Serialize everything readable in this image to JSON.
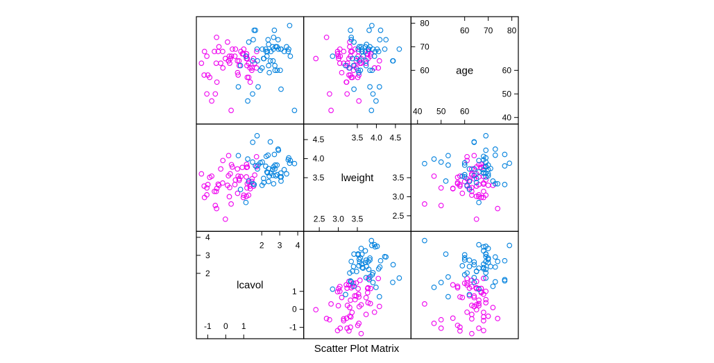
{
  "chart_data": {
    "type": "scatter",
    "title": "",
    "xlabel": "Scatter Plot Matrix",
    "grid": false,
    "legend": "none",
    "colors": {
      "group_1": "#ee00ee",
      "group_2": "#0080dd"
    },
    "variables": [
      {
        "name": "lcavol",
        "range": [
          -1.4,
          4.1
        ],
        "tick_low": [
          -1,
          0,
          1
        ],
        "tick_high": [
          2,
          3,
          4
        ]
      },
      {
        "name": "lweight",
        "range": [
          2.2,
          4.8
        ],
        "tick_low": [
          2.5,
          3.0,
          3.5
        ],
        "tick_high": [
          3.5,
          4.0,
          4.5
        ]
      },
      {
        "name": "age",
        "range": [
          39,
          81
        ],
        "tick_low": [
          40,
          50,
          60
        ],
        "tick_high": [
          60,
          70,
          80
        ]
      }
    ],
    "tick_labels": {
      "lcavol": {
        "low": [
          "-1",
          "0",
          "1"
        ],
        "high": [
          "2",
          "3",
          "4"
        ]
      },
      "lweight": {
        "low": [
          "2.5",
          "3.0",
          "3.5"
        ],
        "high": [
          "3.5",
          "4.0",
          "4.5"
        ]
      },
      "age": {
        "low": [
          "40",
          "50",
          "60"
        ],
        "high": [
          "60",
          "70",
          "80"
        ]
      }
    },
    "series": [
      {
        "color": "#ee00ee",
        "points": [
          [
            -0.58,
            2.77,
            50
          ],
          [
            -0.99,
            3.32,
            58
          ],
          [
            -0.51,
            2.69,
            74
          ],
          [
            -1.2,
            3.28,
            58
          ],
          [
            0.75,
            3.43,
            62
          ],
          [
            -1.05,
            3.23,
            50
          ],
          [
            0.74,
            3.47,
            64
          ],
          [
            0.69,
            3.54,
            58
          ],
          [
            -0.78,
            3.54,
            47
          ],
          [
            0.22,
            3.24,
            63
          ],
          [
            0.25,
            3.6,
            65
          ],
          [
            -1.35,
            3.6,
            63
          ],
          [
            1.61,
            3.57,
            63
          ],
          [
            1.27,
            3.04,
            63
          ],
          [
            1.45,
            3.4,
            60
          ],
          [
            0.16,
            4.08,
            64
          ],
          [
            0.84,
            3.53,
            68
          ],
          [
            -0.63,
            3.14,
            68
          ],
          [
            0.51,
            3.32,
            66
          ],
          [
            1.2,
            3.78,
            65
          ],
          [
            1.16,
            3.85,
            67
          ],
          [
            0.37,
            3.78,
            69
          ],
          [
            0.2,
            3.0,
            66
          ],
          [
            1.16,
            3.77,
            67
          ],
          [
            -0.28,
            3.73,
            63
          ],
          [
            1.15,
            3.52,
            66
          ],
          [
            -0.42,
            3.33,
            68
          ],
          [
            1.71,
            4.05,
            61
          ],
          [
            1.2,
            3.34,
            57
          ],
          [
            1.46,
            3.47,
            61
          ],
          [
            1.72,
            3.79,
            68
          ],
          [
            -0.16,
            3.95,
            61
          ],
          [
            0.65,
            3.73,
            64
          ],
          [
            -0.49,
            3.22,
            55
          ],
          [
            0.54,
            3.44,
            69
          ],
          [
            0.1,
            3.3,
            72
          ],
          [
            1.15,
            3.01,
            65
          ],
          [
            0.32,
            3.84,
            66
          ],
          [
            -0.89,
            3.51,
            57
          ],
          [
            0.98,
            2.98,
            67
          ],
          [
            1.18,
            3.23,
            62
          ],
          [
            -1.18,
            2.98,
            68
          ],
          [
            0.3,
            2.81,
            43
          ],
          [
            -0.17,
            3.36,
            68
          ],
          [
            1.0,
            3.04,
            69
          ],
          [
            -0.38,
            3.3,
            70
          ],
          [
            1.55,
            3.28,
            65
          ],
          [
            1.35,
            3.28,
            61
          ],
          [
            -0.53,
            3.14,
            63
          ],
          [
            -1.05,
            3.05,
            66
          ],
          [
            -0.02,
            2.41,
            65
          ],
          [
            0.15,
            3.55,
            64
          ],
          [
            1.36,
            3.21,
            55
          ],
          [
            0.66,
            3.09,
            59
          ],
          [
            1.28,
            3.37,
            57
          ],
          [
            0.92,
            3.77,
            67
          ]
        ]
      },
      {
        "color": "#0080dd",
        "points": [
          [
            2.29,
            3.65,
            66
          ],
          [
            1.8,
            3.83,
            53
          ],
          [
            2.03,
            3.91,
            69
          ],
          [
            2.65,
            3.78,
            69
          ],
          [
            3.47,
            3.97,
            68
          ],
          [
            2.73,
            3.73,
            62
          ],
          [
            2.02,
            3.3,
            61
          ],
          [
            3.82,
            3.87,
            43
          ],
          [
            2.38,
            3.4,
            62
          ],
          [
            1.53,
            3.34,
            73
          ],
          [
            2.7,
            4.11,
            77
          ],
          [
            2.12,
            3.37,
            65
          ],
          [
            2.66,
            3.34,
            74
          ],
          [
            2.86,
            3.58,
            60
          ],
          [
            2.42,
            3.54,
            59
          ],
          [
            1.5,
            4.43,
            64
          ],
          [
            3.38,
            3.6,
            70
          ],
          [
            3.06,
            3.62,
            69
          ],
          [
            3.08,
            3.52,
            69
          ],
          [
            1.74,
            4.6,
            69
          ],
          [
            2.32,
            3.63,
            68
          ],
          [
            2.6,
            3.71,
            70
          ],
          [
            1.49,
            3.91,
            50
          ],
          [
            2.22,
            3.8,
            69
          ],
          [
            3.03,
            3.52,
            60
          ],
          [
            2.25,
            4.06,
            68
          ],
          [
            3.55,
            3.88,
            79
          ],
          [
            2.63,
            3.56,
            64
          ],
          [
            2.91,
            4.25,
            73
          ],
          [
            0.7,
            4.08,
            53
          ],
          [
            2.48,
            4.44,
            64
          ],
          [
            2.35,
            4.09,
            73
          ],
          [
            3.07,
            3.41,
            52
          ],
          [
            1.22,
            3.99,
            47
          ],
          [
            3.5,
            4.02,
            69
          ],
          [
            1.65,
            3.81,
            77
          ],
          [
            2.93,
            4.22,
            69
          ],
          [
            2.1,
            3.48,
            65
          ],
          [
            1.92,
            3.89,
            60
          ],
          [
            1.58,
            3.32,
            77
          ],
          [
            2.78,
            3.55,
            70
          ],
          [
            2.51,
            3.62,
            68
          ],
          [
            0.82,
            3.19,
            62
          ],
          [
            1.76,
            3.73,
            64
          ],
          [
            3.25,
            3.71,
            68
          ],
          [
            1.12,
            2.85,
            66
          ],
          [
            2.74,
            3.83,
            60
          ],
          [
            3.59,
            3.95,
            66
          ],
          [
            2.85,
            3.83,
            70
          ],
          [
            1.28,
            3.41,
            72
          ],
          [
            2.38,
            3.74,
            71
          ]
        ]
      }
    ]
  }
}
